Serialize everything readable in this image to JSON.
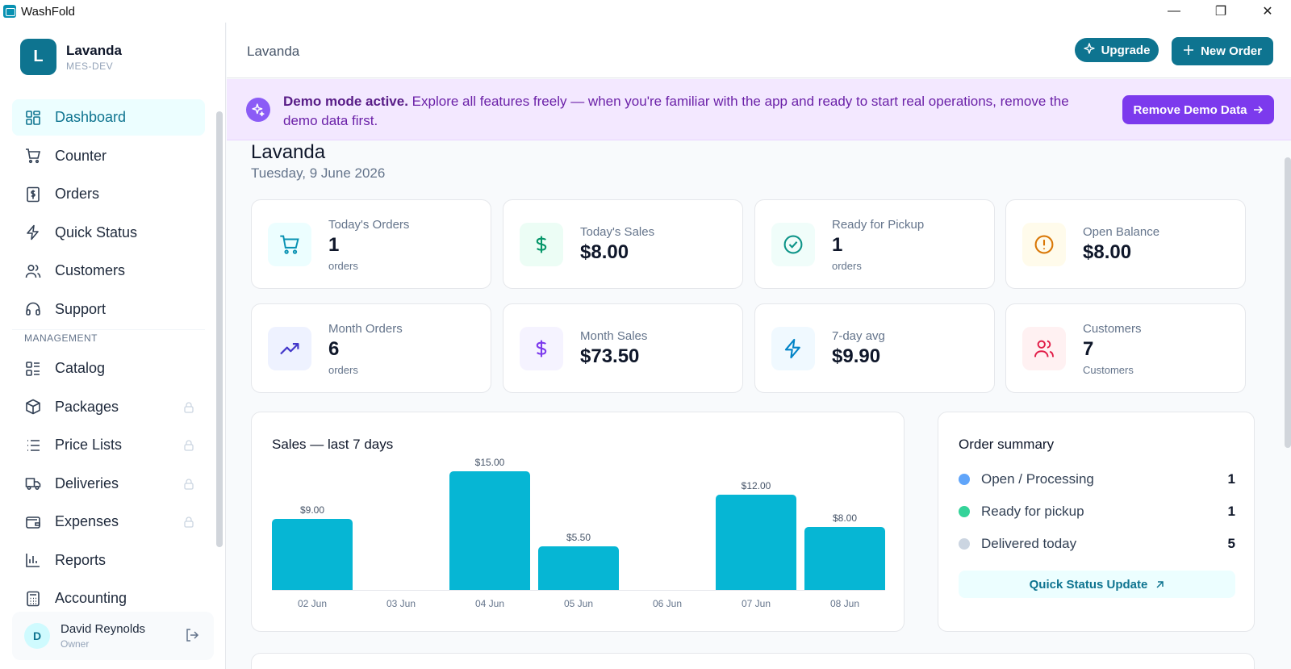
{
  "window": {
    "app_name": "WashFold",
    "minimize": "—",
    "maximize": "❐",
    "close": "✕"
  },
  "sidebar": {
    "brand": {
      "initial": "L",
      "name": "Lavanda",
      "sub": "MES-DEV"
    },
    "items": [
      {
        "label": "Dashboard",
        "icon": "dashboard-icon"
      },
      {
        "label": "Counter",
        "icon": "cart-icon"
      },
      {
        "label": "Orders",
        "icon": "receipt-icon"
      },
      {
        "label": "Quick Status",
        "icon": "bolt-icon"
      },
      {
        "label": "Customers",
        "icon": "users-icon"
      },
      {
        "label": "Support",
        "icon": "headset-icon"
      }
    ],
    "section_label": "MANAGEMENT",
    "management_items": [
      {
        "label": "Catalog",
        "icon": "catalog-icon",
        "locked": false
      },
      {
        "label": "Packages",
        "icon": "package-icon",
        "locked": true
      },
      {
        "label": "Price Lists",
        "icon": "list-icon",
        "locked": true
      },
      {
        "label": "Deliveries",
        "icon": "truck-icon",
        "locked": true
      },
      {
        "label": "Expenses",
        "icon": "wallet-icon",
        "locked": true
      },
      {
        "label": "Reports",
        "icon": "chart-icon",
        "locked": false
      },
      {
        "label": "Accounting",
        "icon": "calculator-icon",
        "locked": false
      }
    ],
    "user": {
      "initial": "D",
      "name": "David Reynolds",
      "role": "Owner"
    }
  },
  "header": {
    "breadcrumb": "Lavanda",
    "upgrade_label": "Upgrade",
    "new_order_label": "New Order"
  },
  "demo_banner": {
    "title": "Demo mode active.",
    "text": " Explore all features freely — when you're familiar with the app and ready to start real operations, remove the demo data first.",
    "button_label": "Remove Demo Data"
  },
  "page": {
    "title": "Lavanda",
    "date": "Tuesday, 9 June 2026"
  },
  "stats": [
    {
      "label": "Today's Orders",
      "value": "1",
      "unit": "orders",
      "icon": "cart-icon",
      "accent": "#0891b2",
      "bg": "#ecfeff"
    },
    {
      "label": "Today's Sales",
      "value": "$8.00",
      "unit": "",
      "icon": "dollar-icon",
      "accent": "#059669",
      "bg": "#ecfdf5"
    },
    {
      "label": "Ready for Pickup",
      "value": "1",
      "unit": "orders",
      "icon": "check-circle-icon",
      "accent": "#0d9488",
      "bg": "#f0fdfa"
    },
    {
      "label": "Open Balance",
      "value": "$8.00",
      "unit": "",
      "icon": "alert-circle-icon",
      "accent": "#d97706",
      "bg": "#fffbeb"
    },
    {
      "label": "Month Orders",
      "value": "6",
      "unit": "orders",
      "icon": "trend-up-icon",
      "accent": "#4338ca",
      "bg": "#eef2ff"
    },
    {
      "label": "Month Sales",
      "value": "$73.50",
      "unit": "",
      "icon": "dollar-icon",
      "accent": "#7c3aed",
      "bg": "#f5f3ff"
    },
    {
      "label": "7-day avg",
      "value": "$9.90",
      "unit": "",
      "icon": "bolt-icon",
      "accent": "#0284c7",
      "bg": "#f0f9ff"
    },
    {
      "label": "Customers",
      "value": "7",
      "unit": "Customers",
      "icon": "users-icon",
      "accent": "#e11d48",
      "bg": "#fff1f2"
    }
  ],
  "sales_card": {
    "title": "Sales — last 7 days"
  },
  "chart_data": {
    "type": "bar",
    "title": "Sales — last 7 days",
    "categories": [
      "02 Jun",
      "03 Jun",
      "04 Jun",
      "05 Jun",
      "06 Jun",
      "07 Jun",
      "08 Jun"
    ],
    "values": [
      9.0,
      0,
      15.0,
      5.5,
      0,
      12.0,
      8.0
    ],
    "data_labels": [
      "$9.00",
      "",
      "$15.00",
      "$5.50",
      "",
      "$12.00",
      "$8.00"
    ],
    "ylim": [
      0,
      15
    ],
    "color": "#06b6d4",
    "grid": false
  },
  "summary": {
    "title": "Order summary",
    "rows": [
      {
        "label": "Open / Processing",
        "count": "1",
        "color": "#60a5fa"
      },
      {
        "label": "Ready for pickup",
        "count": "1",
        "color": "#34d399"
      },
      {
        "label": "Delivered today",
        "count": "5",
        "color": "#cbd5e1"
      }
    ],
    "button_label": "Quick Status Update"
  }
}
